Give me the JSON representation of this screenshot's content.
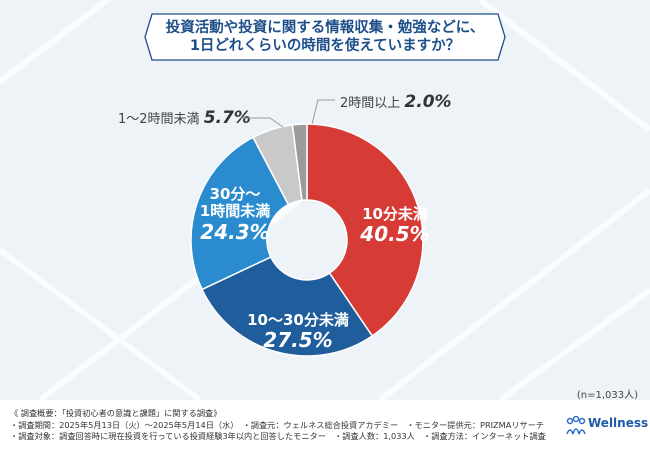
{
  "title": {
    "line1": "投資活動や投資に関する情報収集・勉強などに、",
    "line2": "1日どれくらいの時間を使えていますか？"
  },
  "chart_data": {
    "type": "pie",
    "donut": true,
    "title": "投資活動や投資に関する情報収集・勉強などに、1日どれくらいの時間を使えていますか？",
    "slices": [
      {
        "name": "10分未満",
        "value": 40.5,
        "label": "40.5%",
        "color": "#d63b36"
      },
      {
        "name": "10〜30分未満",
        "value": 27.5,
        "label": "27.5%",
        "color": "#1f5d9c"
      },
      {
        "name": "30分〜1時間未満",
        "value": 24.3,
        "label": "24.3%",
        "color": "#2a8ccf"
      },
      {
        "name": "1〜2時間未満",
        "value": 5.7,
        "label": "5.7%",
        "color": "#c9c9c9"
      },
      {
        "name": "2時間以上",
        "value": 2.0,
        "label": "2.0%",
        "color": "#9b9b9b"
      }
    ],
    "start": "top",
    "direction": "clockwise"
  },
  "labels": {
    "s0a": "10分未満",
    "s1a": "10〜30分未満",
    "s2a": "30分〜",
    "s2b": "1時間未満"
  },
  "sample": "(n=1,033人)",
  "notes": [
    "《 調査概要：「投資初心者の意識と課題」に関する調査》",
    "・調査期間：2025年5月13日（火）〜2025年5月14日（水）　・調査元：ウェルネス総合投資アカデミー　・モニター提供元：PRIZMAリサーチ",
    "・調査対象：調査回答時に現在投資を行っている投資経験3年以内と回答したモニター　・調査人数：1,033人　・調査方法：インターネット調査"
  ],
  "logo": {
    "name": "Wellness",
    "sub1": "幸せな人生を創る",
    "sub2": "総合投資アカデミー"
  }
}
